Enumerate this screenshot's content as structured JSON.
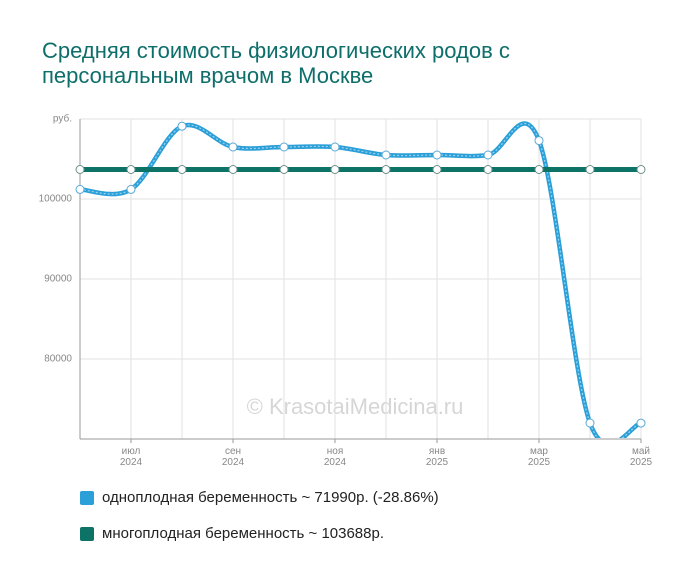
{
  "chart_data": {
    "type": "line",
    "title": [
      "Средняя стоимость физиологических родов с",
      "персональным врачом в Москве"
    ],
    "y_label": "руб.",
    "watermark": "© KrasotaiMedicina.ru",
    "categories": [
      null,
      "июл 2024",
      null,
      "сен 2024",
      null,
      "ноя 2024",
      null,
      "янв 2025",
      null,
      "мар 2025",
      null,
      "май 2025"
    ],
    "series": [
      {
        "name": "одноплодная беременность ~ 71990р. (-28.86%)",
        "color": "#2a9fd8",
        "values": [
          101200,
          101200,
          109100,
          106500,
          106500,
          106500,
          105500,
          105500,
          105500,
          107300,
          72000,
          71990
        ]
      },
      {
        "name": "многоплодная беременность ~ 103688р.",
        "color": "#0d7366",
        "values": [
          103688,
          103688,
          103688,
          103688,
          103688,
          103688,
          103688,
          103688,
          103688,
          103688,
          103688,
          103688
        ]
      }
    ],
    "ylim": [
      70000,
      110000
    ],
    "yticks": [
      80000,
      90000,
      100000
    ],
    "grid": true
  }
}
